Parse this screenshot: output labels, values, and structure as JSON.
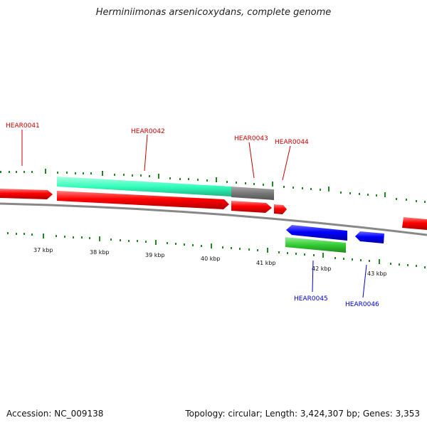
{
  "title": "Herminiimonas arsenicoxydans, complete genome",
  "footer": {
    "accession": "Accession: NC_009138",
    "topology": "Topology: circular; Length: 3,424,307 bp; Genes: 3,353"
  },
  "scale": {
    "unit": "kbp",
    "ticks": [
      {
        "kbp": 37,
        "label": "37 kbp"
      },
      {
        "kbp": 38,
        "label": "38 kbp"
      },
      {
        "kbp": 39,
        "label": "39 kbp"
      },
      {
        "kbp": 40,
        "label": "40 kbp"
      },
      {
        "kbp": 41,
        "label": "41 kbp"
      },
      {
        "kbp": 42,
        "label": "42 kbp"
      },
      {
        "kbp": 43,
        "label": "43 kbp"
      }
    ]
  },
  "genes": [
    {
      "label": "HEAR0041",
      "strand": "+",
      "label_color": "#cc0000"
    },
    {
      "label": "HEAR0042",
      "strand": "+",
      "label_color": "#cc0000"
    },
    {
      "label": "HEAR0043",
      "strand": "+",
      "label_color": "#cc0000"
    },
    {
      "label": "HEAR0044",
      "strand": "+",
      "label_color": "#cc0000"
    },
    {
      "label": "HEAR0045",
      "strand": "-",
      "label_color": "#0000cc"
    },
    {
      "label": "HEAR0046",
      "strand": "-",
      "label_color": "#0000cc"
    }
  ],
  "colors": {
    "forward_gene": "#ff0000",
    "reverse_gene": "#0000ff",
    "rna_forward": "#33ffbb",
    "rna_reverse": "#33cc33",
    "other_feature": "#777777",
    "backbone": "#888888",
    "tick": "#228822"
  }
}
